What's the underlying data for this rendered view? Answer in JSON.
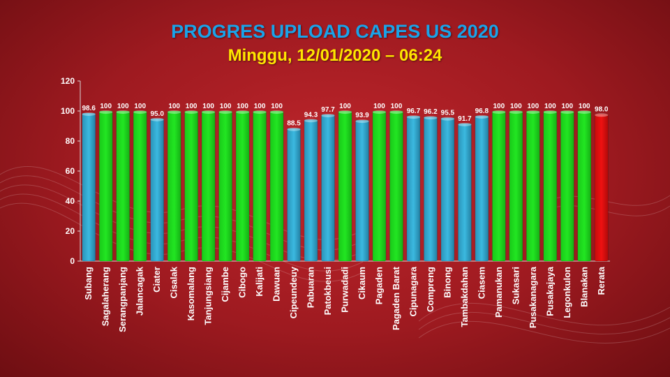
{
  "header": {
    "title": "PROGRES UPLOAD CAPES US 2020",
    "subtitle": "Minggu, 12/01/2020 – 06:24"
  },
  "colors": {
    "complete": "#22e622",
    "partial": "#3bb9e0",
    "average": "#ee1111",
    "title": "#1aa3e8",
    "subtitle": "#ffe600"
  },
  "chart_data": {
    "type": "bar",
    "categories": [
      "Subang",
      "Sagalaherang",
      "Serangpanjang",
      "Jalancagak",
      "Ciater",
      "Cisalak",
      "Kasomalang",
      "Tanjungsiang",
      "Cijambe",
      "Cibogo",
      "Kalijati",
      "Dawuan",
      "Cipeundeuy",
      "Pabuaran",
      "Patokbeusi",
      "Purwadadi",
      "Cikaum",
      "Pagaden",
      "Pagaden Barat",
      "Cipunagara",
      "Compreng",
      "Binong",
      "Tambakdahan",
      "Ciasem",
      "Pamanukan",
      "Sukasari",
      "Pusakanagara",
      "Pusakajaya",
      "Legonkulon",
      "Blanakan",
      "Rerata"
    ],
    "values": [
      98.6,
      100,
      100,
      100,
      95.0,
      100,
      100,
      100,
      100,
      100,
      100,
      100,
      88.5,
      94.3,
      97.7,
      100,
      93.9,
      100,
      100,
      96.7,
      96.2,
      95.5,
      91.7,
      96.8,
      100,
      100,
      100,
      100,
      100,
      100,
      98.0
    ],
    "value_labels": [
      "98.6",
      "100",
      "100",
      "100",
      "95.0",
      "100",
      "100",
      "100",
      "100",
      "100",
      "100",
      "100",
      "88.5",
      "94.3",
      "97.7",
      "100",
      "93.9",
      "100",
      "100",
      "96.7",
      "96.2",
      "95.5",
      "91.7",
      "96.8",
      "100",
      "100",
      "100",
      "100",
      "100",
      "100",
      "98.0"
    ],
    "yticks": [
      "0",
      "20",
      "40",
      "60",
      "80",
      "100",
      "120"
    ],
    "ylim": [
      0,
      120
    ],
    "grid": false,
    "legend": "none"
  }
}
